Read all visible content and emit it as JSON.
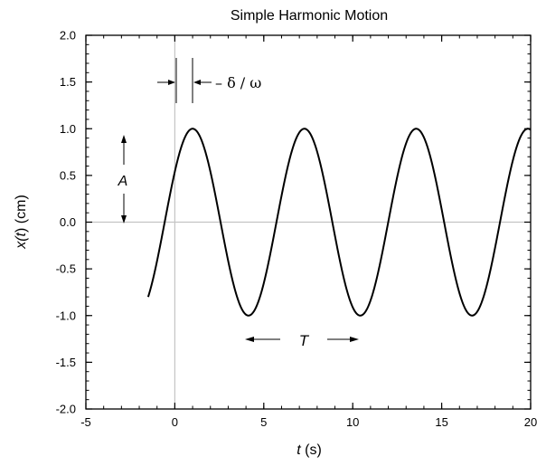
{
  "chart_data": {
    "type": "line",
    "title": "Simple Harmonic Motion",
    "xlabel": {
      "italic": "t",
      "rest": " (s)"
    },
    "ylabel": {
      "prefix": "x(",
      "italic": "t",
      "suffix": ") (cm)"
    },
    "xlim": [
      -5,
      20
    ],
    "ylim": [
      -2.0,
      2.0
    ],
    "x_ticks": [
      "-5",
      "0",
      "5",
      "10",
      "15",
      "20"
    ],
    "y_ticks": [
      "-2.0",
      "-1.5",
      "-1.0",
      "-0.5",
      "0.0",
      "0.5",
      "1.0",
      "1.5",
      "2.0"
    ],
    "x_tick_values": [
      -5,
      0,
      5,
      10,
      15,
      20
    ],
    "y_tick_values": [
      -2.0,
      -1.5,
      -1.0,
      -0.5,
      0.0,
      0.5,
      1.0,
      1.5,
      2.0
    ],
    "reference_lines": {
      "x": 0,
      "y": 0
    },
    "series": [
      {
        "function": "A*cos(omega*t + delta)",
        "amplitude": 1.0,
        "omega": 1.0,
        "delta": -1.0,
        "t_range": [
          -1.5,
          20.0
        ]
      }
    ],
    "annotations": {
      "phase_label": "– δ / ω",
      "amplitude_label": "A",
      "period_label": "T"
    }
  }
}
